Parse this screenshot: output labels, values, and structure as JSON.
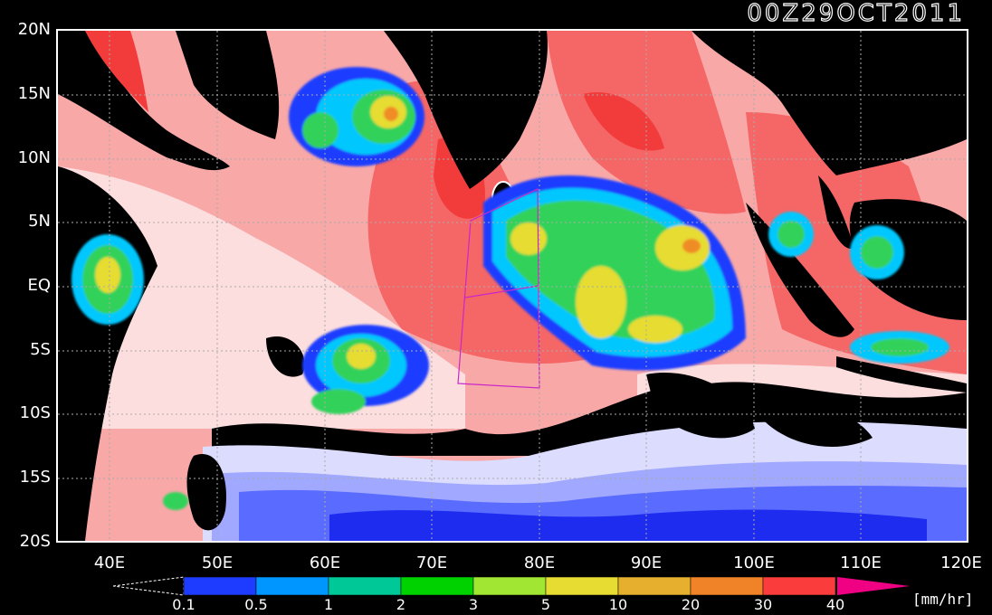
{
  "title": "00Z29OCT2011",
  "units": "[mm/hr]",
  "lat_ticks": [
    "20N",
    "15N",
    "10N",
    "5N",
    "EQ",
    "5S",
    "10S",
    "15S",
    "20S"
  ],
  "lon_ticks": [
    "40E",
    "50E",
    "60E",
    "70E",
    "80E",
    "90E",
    "100E",
    "110E",
    "120E"
  ],
  "colorbar": {
    "labels": [
      "0.1",
      "0.5",
      "1",
      "2",
      "3",
      "5",
      "10",
      "20",
      "30",
      "40"
    ],
    "colors": [
      "#1e3cff",
      "#0096ff",
      "#00c896",
      "#00d200",
      "#a0e632",
      "#e6dc32",
      "#e6af2d",
      "#f08228",
      "#fa3c3c",
      "#f00082"
    ],
    "under_color": "#000000",
    "over_color": "#f00082"
  },
  "map_colors": {
    "land": "#000000",
    "ocean_light": "#fddede",
    "ocean_mid": "#f9a8a8",
    "ocean_red": "#f56666",
    "ocean_deep_red": "#f23c3c",
    "lavender": "#dcdcff",
    "light_blue": "#a0a8ff",
    "mid_blue": "#5a6cff",
    "deep_blue": "#1e2cf0",
    "storm_cyan": "#00c8ff",
    "storm_green": "#32d25a",
    "storm_yellow": "#e6dc32",
    "storm_orange": "#f08c28",
    "grid": "#aaaaaa",
    "box": "#c828c8"
  }
}
